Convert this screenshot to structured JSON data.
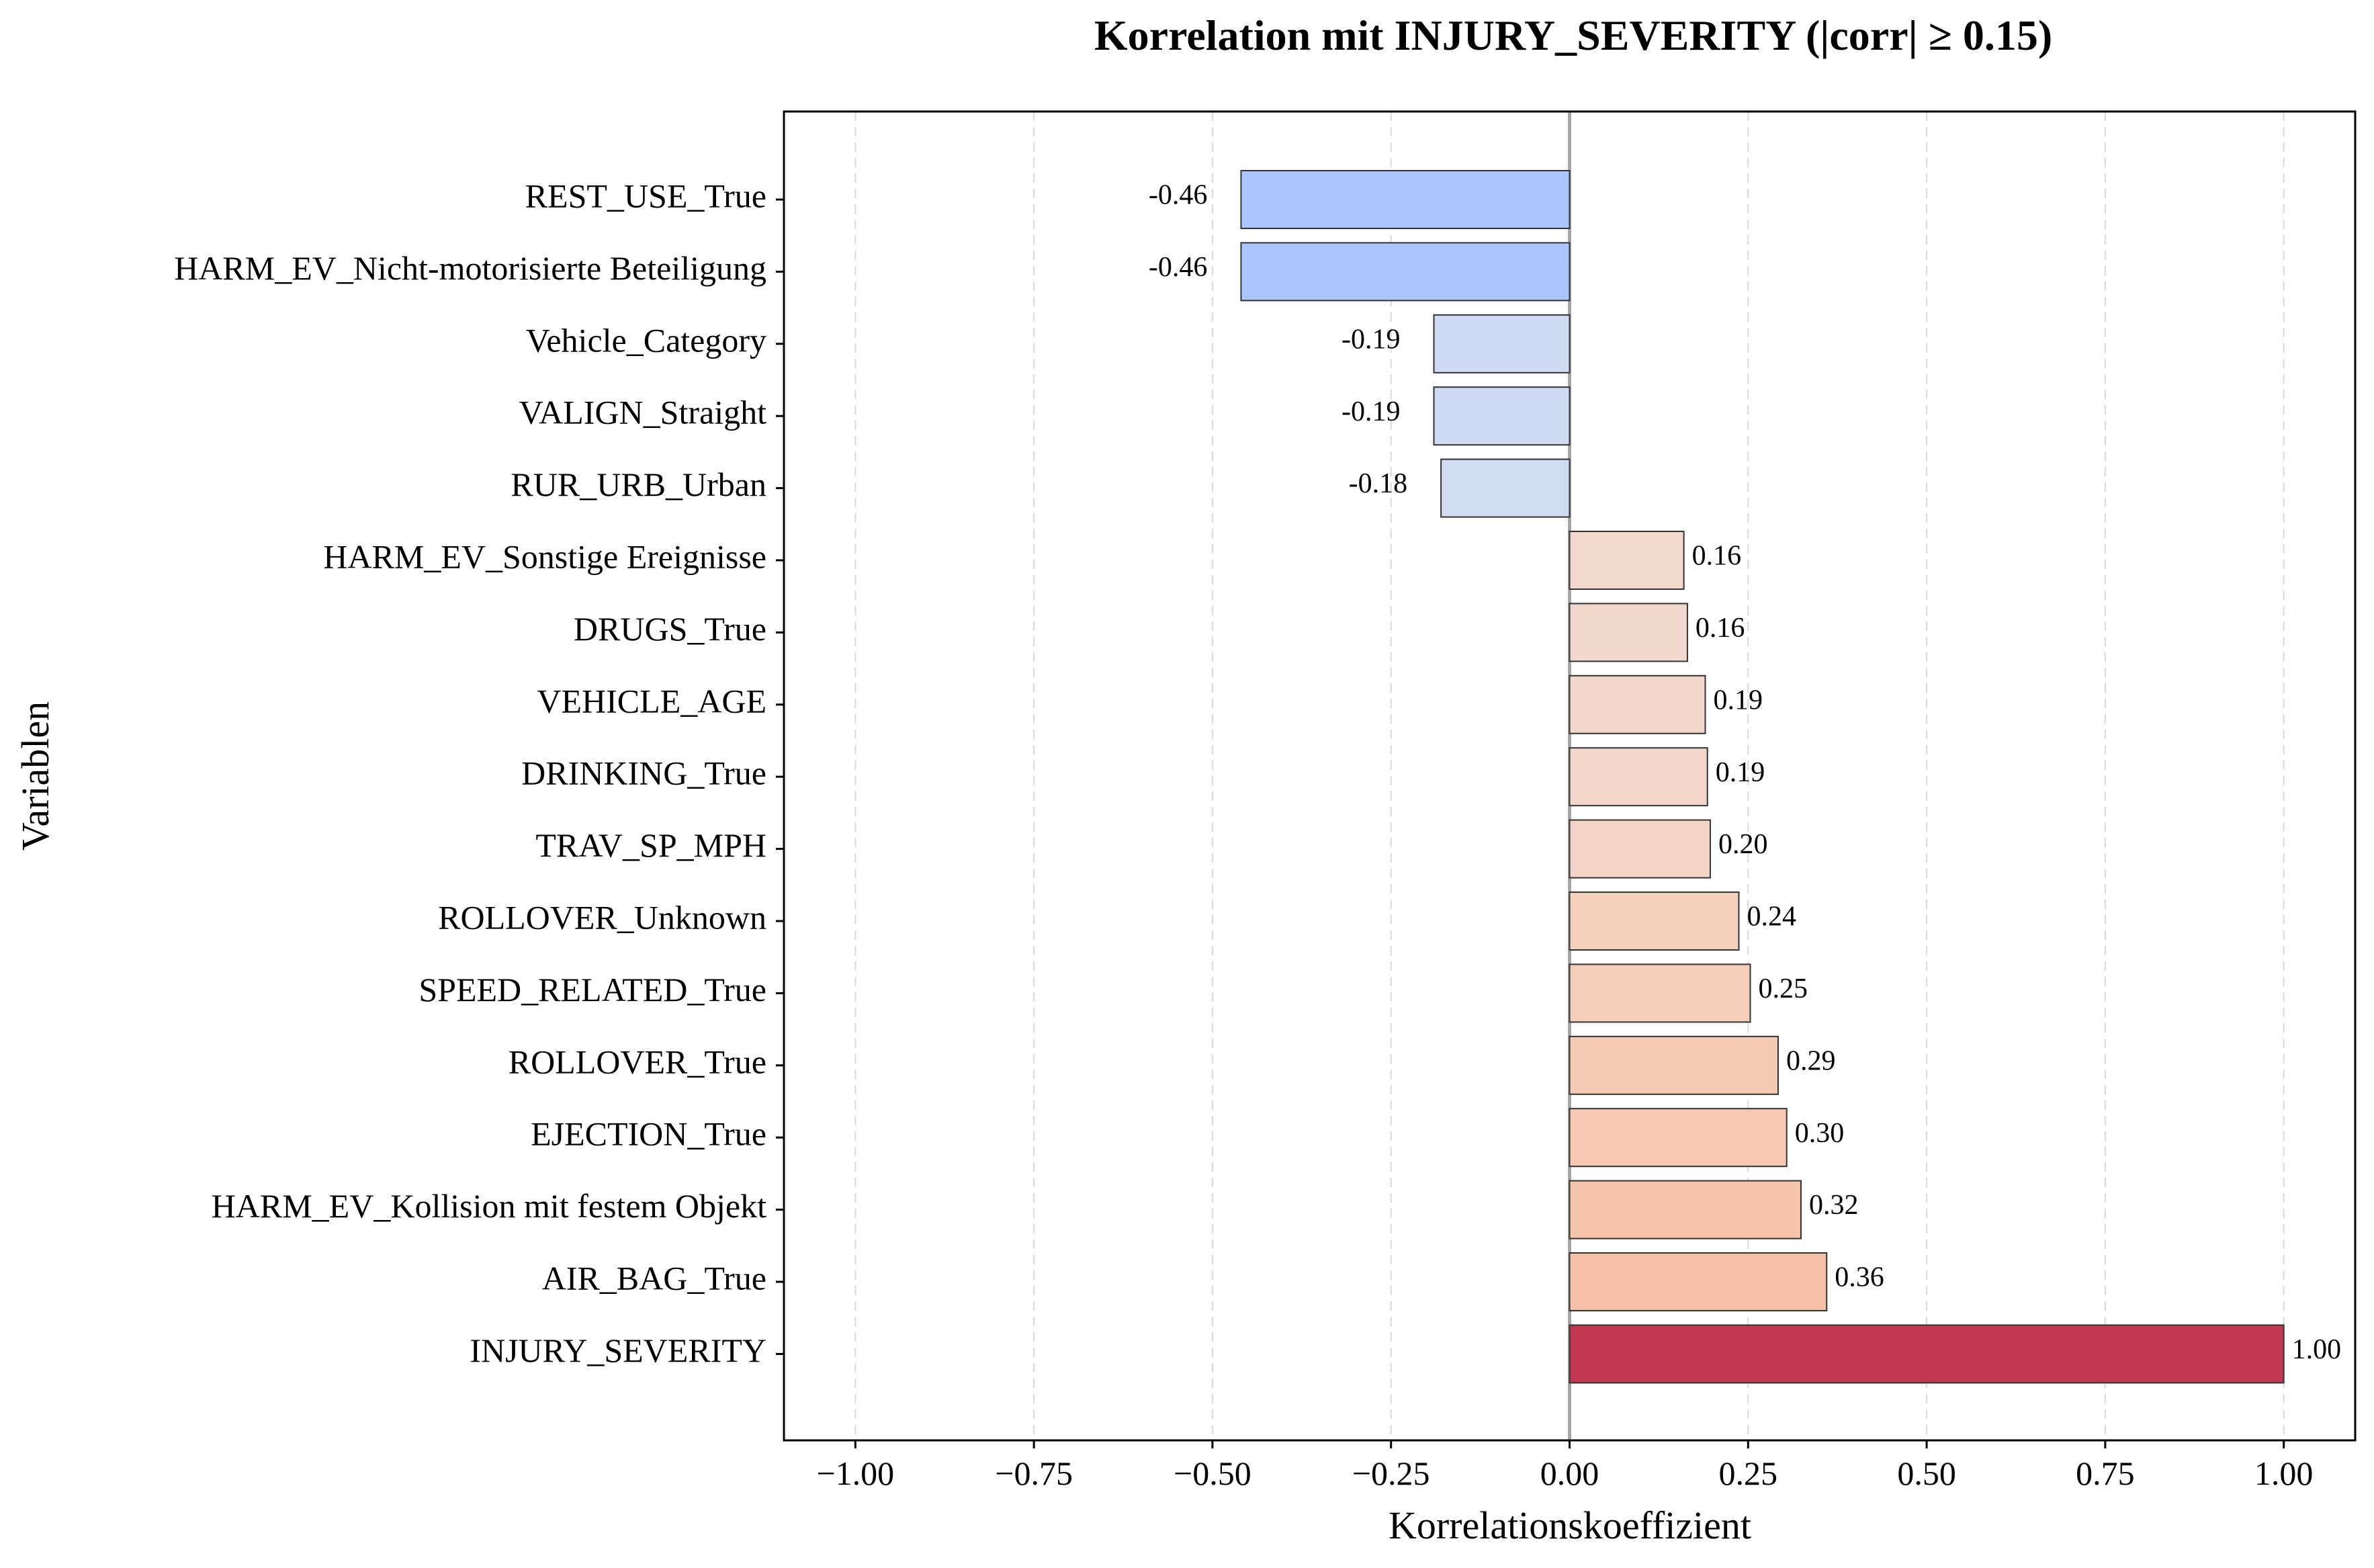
{
  "chart_data": {
    "type": "bar",
    "orientation": "horizontal",
    "title": "Korrelation mit INJURY_SEVERITY (|corr| ≥ 0.15)",
    "xlabel": "Korrelationskoeffizient",
    "ylabel": "Variablen",
    "xlim": [
      -1.1,
      1.1
    ],
    "xticks": [
      -1.0,
      -0.75,
      -0.5,
      -0.25,
      0.0,
      0.25,
      0.5,
      0.75,
      1.0
    ],
    "xtick_labels": [
      "−1.00",
      "−0.75",
      "−0.50",
      "−0.25",
      "0.00",
      "0.25",
      "0.50",
      "0.75",
      "1.00"
    ],
    "grid": "x-dashed",
    "categories": [
      "REST_USE_True",
      "HARM_EV_Nicht-motorisierte Beteiligung",
      "Vehicle_Category",
      "VALIGN_Straight",
      "RUR_URB_Urban",
      "HARM_EV_Sonstige Ereignisse",
      "DRUGS_True",
      "VEHICLE_AGE",
      "DRINKING_True",
      "TRAV_SP_MPH",
      "ROLLOVER_Unknown",
      "SPEED_RELATED_True",
      "ROLLOVER_True",
      "EJECTION_True",
      "HARM_EV_Kollision mit festem Objekt",
      "AIR_BAG_True",
      "INJURY_SEVERITY"
    ],
    "values": [
      -0.46,
      -0.46,
      -0.19,
      -0.19,
      -0.18,
      0.16,
      0.165,
      0.19,
      0.193,
      0.197,
      0.237,
      0.253,
      0.292,
      0.304,
      0.324,
      0.36,
      1.0
    ],
    "value_labels": [
      "-0.46",
      "-0.46",
      "-0.19",
      "-0.19",
      "-0.18",
      "0.16",
      "0.16",
      "0.19",
      "0.19",
      "0.20",
      "0.24",
      "0.25",
      "0.29",
      "0.30",
      "0.32",
      "0.36",
      "1.00"
    ],
    "colors": [
      "#aac5fd",
      "#aac5fd",
      "#cfdbf3",
      "#cfdbf3",
      "#d0dcf2",
      "#f1d9ce",
      "#f1d8cc",
      "#f2d6c9",
      "#f2d6c9",
      "#f3d5c7",
      "#f5d0bd",
      "#f5cdb9",
      "#f6c9b2",
      "#f6c8b1",
      "#f5c4ab",
      "#f5c0a6",
      "#c43751"
    ],
    "bar_edge_color": "#333333"
  }
}
